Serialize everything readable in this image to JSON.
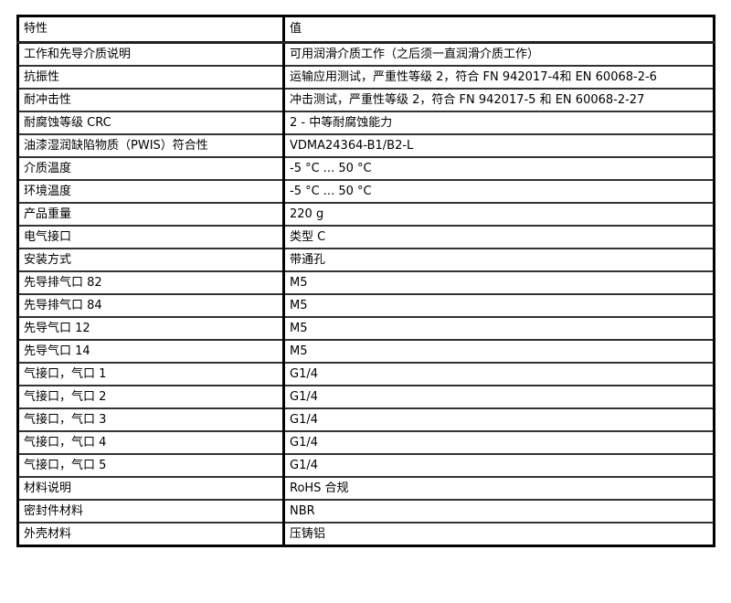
{
  "table": {
    "header": {
      "property": "特性",
      "value": "值"
    },
    "rows": [
      {
        "property": "工作和先导介质说明",
        "value": "可用润滑介质工作（之后须一直润滑介质工作）"
      },
      {
        "property": "抗振性",
        "value": "运输应用测试，严重性等级 2，符合 FN 942017-4和 EN 60068-2-6"
      },
      {
        "property": "耐冲击性",
        "value": "冲击测试，严重性等级 2，符合 FN 942017-5 和 EN 60068-2-27"
      },
      {
        "property": "耐腐蚀等级 CRC",
        "value": "2 - 中等耐腐蚀能力"
      },
      {
        "property": "油漆湿润缺陷物质（PWIS）符合性",
        "value": "VDMA24364-B1/B2-L"
      },
      {
        "property": "介质温度",
        "value": "-5 °C ... 50 °C"
      },
      {
        "property": "环境温度",
        "value": "-5 °C ... 50 °C"
      },
      {
        "property": "产品重量",
        "value": "220 g"
      },
      {
        "property": "电气接口",
        "value": "类型 C"
      },
      {
        "property": "安装方式",
        "value": "带通孔"
      },
      {
        "property": "先导排气口 82",
        "value": "M5"
      },
      {
        "property": "先导排气口 84",
        "value": "M5"
      },
      {
        "property": "先导气口 12",
        "value": "M5"
      },
      {
        "property": "先导气口 14",
        "value": "M5"
      },
      {
        "property": "气接口，气口 1",
        "value": "G1/4"
      },
      {
        "property": "气接口，气口 2",
        "value": "G1/4"
      },
      {
        "property": "气接口，气口 3",
        "value": "G1/4"
      },
      {
        "property": "气接口，气口 4",
        "value": "G1/4"
      },
      {
        "property": "气接口，气口 5",
        "value": "G1/4"
      },
      {
        "property": "材料说明",
        "value": "RoHS 合规"
      },
      {
        "property": "密封件材料",
        "value": "NBR"
      },
      {
        "property": "外壳材料",
        "value": "压铸铝"
      }
    ]
  }
}
